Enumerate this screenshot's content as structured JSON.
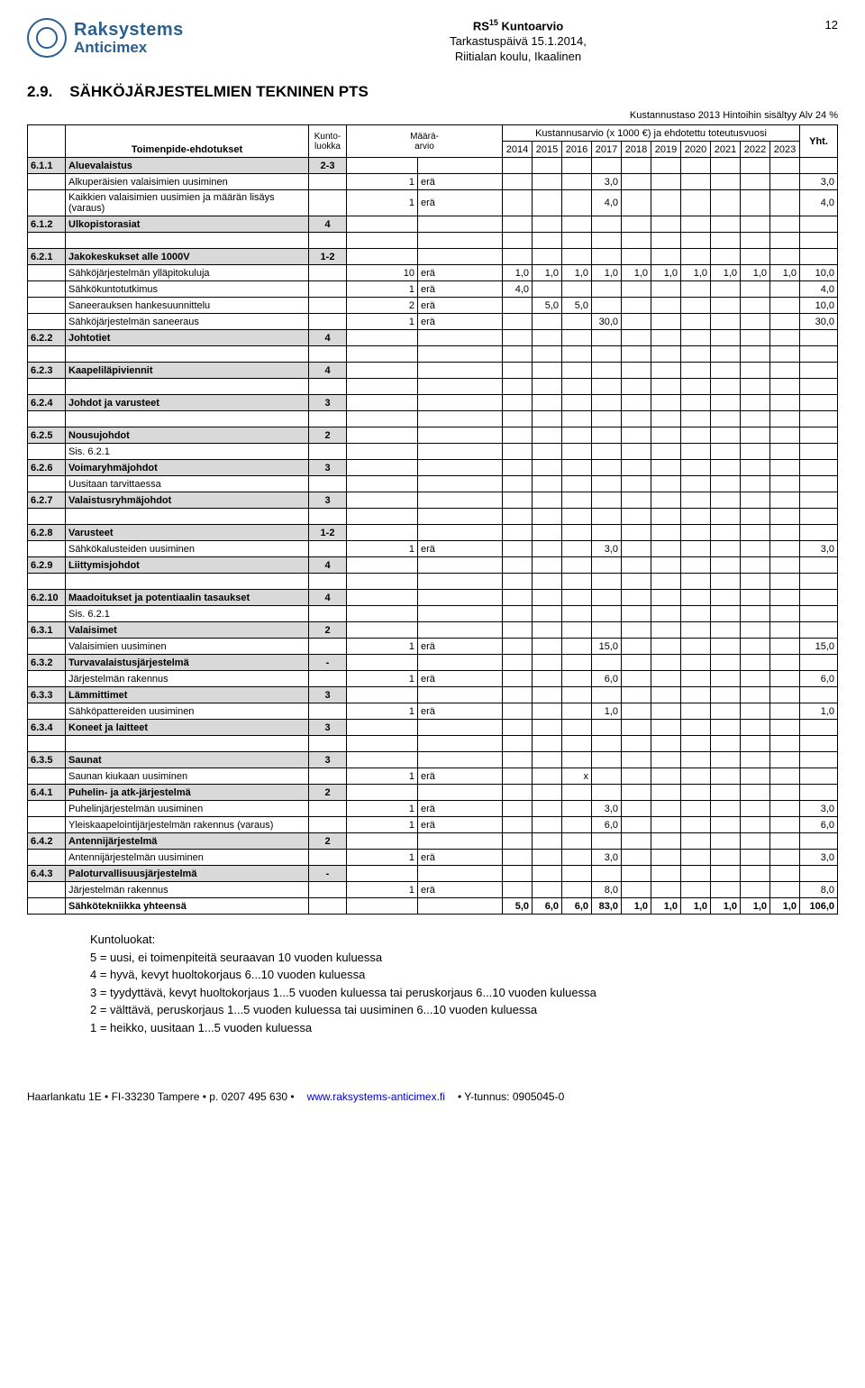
{
  "header": {
    "company_line1": "Raksystems",
    "company_line2": "Anticimex",
    "doc_title_prefix": "RS",
    "doc_title_sup": "15",
    "doc_title_suffix": " Kuntoarvio",
    "meta_line2": "Tarkastuspäivä 15.1.2014,",
    "meta_line3": "Riitialan koulu, Ikaalinen",
    "page_number": "12"
  },
  "section": {
    "number": "2.9.",
    "title": "SÄHKÖJÄRJESTELMIEN TEKNINEN PTS"
  },
  "cost_note": "Kustannustaso 2013  Hintoihin sisältyy Alv 24 %",
  "table_header": {
    "toimenpide": "Toimenpide-ehdotukset",
    "kunto": "Kunto-\nluokka",
    "maara": "Määrä-\narvio",
    "cost_header": "Kustannusarvio (x 1000 €) ja ehdotettu toteutusvuosi",
    "years": [
      "2014",
      "2015",
      "2016",
      "2017",
      "2018",
      "2019",
      "2020",
      "2021",
      "2022",
      "2023"
    ],
    "yht": "Yht."
  },
  "rows": [
    {
      "type": "cat",
      "code": "6.1.1",
      "desc": "Aluevalaistus",
      "kl": "2-3"
    },
    {
      "type": "item",
      "desc": "Alkuperäisien valaisimien uusiminen",
      "amt": "1",
      "unit": "erä",
      "vals": {
        "2017": "3,0"
      },
      "yht": "3,0"
    },
    {
      "type": "item",
      "desc": "Kaikkien valaisimien uusimien ja määrän lisäys (varaus)",
      "amt": "1",
      "unit": "erä",
      "vals": {
        "2017": "4,0"
      },
      "yht": "4,0"
    },
    {
      "type": "cat",
      "code": "6.1.2",
      "desc": "Ulkopistorasiat",
      "kl": "4"
    },
    {
      "type": "spacer"
    },
    {
      "type": "cat",
      "code": "6.2.1",
      "desc": "Jakokeskukset alle 1000V",
      "kl": "1-2"
    },
    {
      "type": "item",
      "desc": "Sähköjärjestelmän ylläpitokuluja",
      "amt": "10",
      "unit": "erä",
      "vals": {
        "2014": "1,0",
        "2015": "1,0",
        "2016": "1,0",
        "2017": "1,0",
        "2018": "1,0",
        "2019": "1,0",
        "2020": "1,0",
        "2021": "1,0",
        "2022": "1,0",
        "2023": "1,0"
      },
      "yht": "10,0"
    },
    {
      "type": "item",
      "desc": "Sähkökuntotutkimus",
      "amt": "1",
      "unit": "erä",
      "vals": {
        "2014": "4,0"
      },
      "yht": "4,0"
    },
    {
      "type": "item",
      "desc": "Saneerauksen hankesuunnittelu",
      "amt": "2",
      "unit": "erä",
      "vals": {
        "2015": "5,0",
        "2016": "5,0"
      },
      "yht": "10,0"
    },
    {
      "type": "item",
      "desc": "Sähköjärjestelmän saneeraus",
      "amt": "1",
      "unit": "erä",
      "vals": {
        "2017": "30,0"
      },
      "yht": "30,0"
    },
    {
      "type": "cat",
      "code": "6.2.2",
      "desc": "Johtotiet",
      "kl": "4"
    },
    {
      "type": "spacer"
    },
    {
      "type": "cat",
      "code": "6.2.3",
      "desc": "Kaapeliläpiviennit",
      "kl": "4"
    },
    {
      "type": "spacer"
    },
    {
      "type": "cat",
      "code": "6.2.4",
      "desc": "Johdot ja varusteet",
      "kl": "3"
    },
    {
      "type": "spacer"
    },
    {
      "type": "cat",
      "code": "6.2.5",
      "desc": "Nousujohdot",
      "kl": "2"
    },
    {
      "type": "item",
      "desc": "Sis. 6.2.1"
    },
    {
      "type": "cat",
      "code": "6.2.6",
      "desc": "Voimaryhmäjohdot",
      "kl": "3"
    },
    {
      "type": "item",
      "desc": "Uusitaan tarvittaessa"
    },
    {
      "type": "cat",
      "code": "6.2.7",
      "desc": "Valaistusryhmäjohdot",
      "kl": "3"
    },
    {
      "type": "spacer"
    },
    {
      "type": "cat",
      "code": "6.2.8",
      "desc": "Varusteet",
      "kl": "1-2"
    },
    {
      "type": "item",
      "desc": "Sähkökalusteiden uusiminen",
      "amt": "1",
      "unit": "erä",
      "vals": {
        "2017": "3,0"
      },
      "yht": "3,0"
    },
    {
      "type": "cat",
      "code": "6.2.9",
      "desc": "Liittymisjohdot",
      "kl": "4"
    },
    {
      "type": "spacer"
    },
    {
      "type": "cat",
      "code": "6.2.10",
      "desc": "Maadoitukset ja potentiaalin tasaukset",
      "kl": "4"
    },
    {
      "type": "item",
      "desc": "Sis. 6.2.1"
    },
    {
      "type": "cat",
      "code": "6.3.1",
      "desc": "Valaisimet",
      "kl": "2"
    },
    {
      "type": "item",
      "desc": "Valaisimien uusiminen",
      "amt": "1",
      "unit": "erä",
      "vals": {
        "2017": "15,0"
      },
      "yht": "15,0"
    },
    {
      "type": "cat",
      "code": "6.3.2",
      "desc": "Turvavalaistusjärjestelmä",
      "kl": "-"
    },
    {
      "type": "item",
      "desc": "Järjestelmän rakennus",
      "amt": "1",
      "unit": "erä",
      "vals": {
        "2017": "6,0"
      },
      "yht": "6,0"
    },
    {
      "type": "cat",
      "code": "6.3.3",
      "desc": "Lämmittimet",
      "kl": "3"
    },
    {
      "type": "item",
      "desc": "Sähköpattereiden uusiminen",
      "amt": "1",
      "unit": "erä",
      "vals": {
        "2017": "1,0"
      },
      "yht": "1,0"
    },
    {
      "type": "cat",
      "code": "6.3.4",
      "desc": "Koneet ja laitteet",
      "kl": "3"
    },
    {
      "type": "spacer"
    },
    {
      "type": "cat",
      "code": "6.3.5",
      "desc": "Saunat",
      "kl": "3"
    },
    {
      "type": "item",
      "desc": "Saunan kiukaan uusiminen",
      "amt": "1",
      "unit": "erä",
      "vals": {
        "2016": "x"
      }
    },
    {
      "type": "cat",
      "code": "6.4.1",
      "desc": "Puhelin- ja atk-järjestelmä",
      "kl": "2"
    },
    {
      "type": "item",
      "desc": "Puhelinjärjestelmän uusiminen",
      "amt": "1",
      "unit": "erä",
      "vals": {
        "2017": "3,0"
      },
      "yht": "3,0"
    },
    {
      "type": "item",
      "desc": "Yleiskaapelointijärjestelmän rakennus (varaus)",
      "amt": "1",
      "unit": "erä",
      "vals": {
        "2017": "6,0"
      },
      "yht": "6,0"
    },
    {
      "type": "cat",
      "code": "6.4.2",
      "desc": "Antennijärjestelmä",
      "kl": "2"
    },
    {
      "type": "item",
      "desc": "Antennijärjestelmän uusiminen",
      "amt": "1",
      "unit": "erä",
      "vals": {
        "2017": "3,0"
      },
      "yht": "3,0"
    },
    {
      "type": "cat",
      "code": "6.4.3",
      "desc": "Paloturvallisuusjärjestelmä",
      "kl": "-"
    },
    {
      "type": "item",
      "desc": "Järjestelmän rakennus",
      "amt": "1",
      "unit": "erä",
      "vals": {
        "2017": "8,0"
      },
      "yht": "8,0"
    }
  ],
  "total": {
    "label": "Sähkötekniikka yhteensä",
    "vals": {
      "2014": "5,0",
      "2015": "6,0",
      "2016": "6,0",
      "2017": "83,0",
      "2018": "1,0",
      "2019": "1,0",
      "2020": "1,0",
      "2021": "1,0",
      "2022": "1,0",
      "2023": "1,0"
    },
    "yht": "106,0"
  },
  "legend": {
    "title": "Kuntoluokat:",
    "lines": [
      "5 = uusi, ei toimenpiteitä seuraavan 10 vuoden kuluessa",
      "4 = hyvä, kevyt huoltokorjaus 6...10 vuoden kuluessa",
      "3 = tyydyttävä, kevyt huoltokorjaus 1...5 vuoden kuluessa tai peruskorjaus 6...10 vuoden kuluessa",
      "2 = välttävä, peruskorjaus 1...5 vuoden kuluessa tai uusiminen 6...10 vuoden kuluessa",
      "1 = heikko, uusitaan 1...5 vuoden kuluessa"
    ]
  },
  "footer": {
    "addr": "Haarlankatu 1E  •  FI-33230 Tampere  •  p. 0207 495 630  • ",
    "url": "www.raksystems-anticimex.fi",
    "ytunnus": "  •  Y-tunnus: 0905045-0"
  }
}
